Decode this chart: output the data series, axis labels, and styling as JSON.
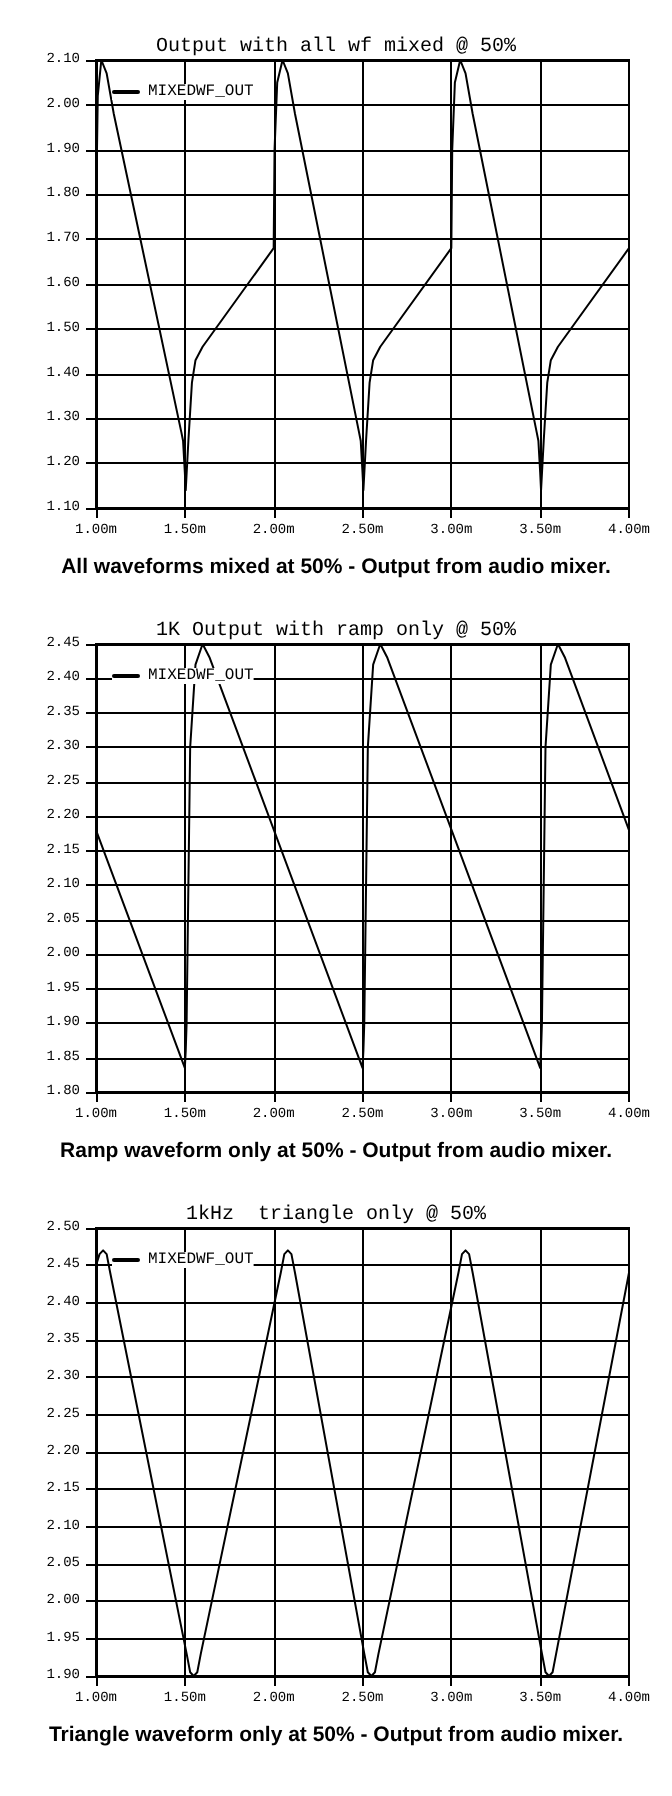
{
  "chart_data": [
    {
      "type": "line",
      "title": "Output with all wf mixed @ 50%",
      "annotations": [
        "All waveforms mixed at 50% - Output from audio mixer."
      ],
      "x": [
        1.0,
        1.01,
        1.03,
        1.06,
        1.1,
        1.48,
        1.49,
        1.5,
        1.505,
        1.52,
        1.54,
        1.56,
        1.6,
        2.0,
        2.005,
        2.02,
        2.05,
        2.08,
        2.12,
        2.48,
        2.49,
        2.5,
        2.505,
        2.52,
        2.54,
        2.56,
        2.6,
        3.0,
        3.005,
        3.02,
        3.05,
        3.08,
        3.12,
        3.48,
        3.49,
        3.5,
        3.505,
        3.52,
        3.54,
        3.56,
        3.6,
        4.0
      ],
      "series": [
        {
          "name": "MIXEDWF_OUT",
          "color": "#000000",
          "values": [
            1.75,
            2.02,
            2.1,
            2.07,
            1.98,
            1.27,
            1.25,
            1.18,
            1.14,
            1.25,
            1.38,
            1.43,
            1.46,
            1.68,
            1.9,
            2.05,
            2.1,
            2.07,
            1.98,
            1.27,
            1.25,
            1.18,
            1.14,
            1.25,
            1.38,
            1.43,
            1.46,
            1.68,
            1.9,
            2.05,
            2.1,
            2.07,
            1.98,
            1.27,
            1.25,
            1.18,
            1.14,
            1.25,
            1.38,
            1.43,
            1.46,
            1.68
          ]
        }
      ],
      "xlim": [
        1,
        4
      ],
      "xticks": [
        {
          "value": 1,
          "label": "1.00m"
        },
        {
          "value": 1.5,
          "label": "1.50m"
        },
        {
          "value": 2,
          "label": "2.00m"
        },
        {
          "value": 2.5,
          "label": "2.50m"
        },
        {
          "value": 3,
          "label": "3.00m"
        },
        {
          "value": 3.5,
          "label": "3.50m"
        },
        {
          "value": 4,
          "label": "4.00m"
        }
      ],
      "ylim": [
        1.1,
        2.1
      ],
      "yticks": [
        {
          "value": 1.1,
          "label": "1.10"
        },
        {
          "value": 1.2,
          "label": "1.20"
        },
        {
          "value": 1.3,
          "label": "1.30"
        },
        {
          "value": 1.4,
          "label": "1.40"
        },
        {
          "value": 1.5,
          "label": "1.50"
        },
        {
          "value": 1.6,
          "label": "1.60"
        },
        {
          "value": 1.7,
          "label": "1.70"
        },
        {
          "value": 1.8,
          "label": "1.80"
        },
        {
          "value": 1.9,
          "label": "1.90"
        },
        {
          "value": 2.0,
          "label": "2.00"
        },
        {
          "value": 2.1,
          "label": "2.10"
        }
      ],
      "grid": true,
      "legend": "top left"
    },
    {
      "type": "line",
      "title": "1K Output with ramp only @ 50%",
      "annotations": [
        "Ramp waveform only at 50% - Output from audio mixer."
      ],
      "x": [
        1.0,
        1.5,
        1.505,
        1.51,
        1.53,
        1.56,
        1.6,
        1.64,
        2.5,
        2.505,
        2.51,
        2.53,
        2.56,
        2.6,
        2.64,
        3.5,
        3.505,
        3.51,
        3.53,
        3.56,
        3.6,
        3.64,
        4.0
      ],
      "series": [
        {
          "name": "MIXEDWF_OUT",
          "color": "#000000",
          "values": [
            2.18,
            1.835,
            1.86,
            1.9,
            2.3,
            2.42,
            2.45,
            2.43,
            1.835,
            1.86,
            1.9,
            2.3,
            2.42,
            2.45,
            2.43,
            1.835,
            1.86,
            1.9,
            2.3,
            2.42,
            2.45,
            2.43,
            2.18
          ]
        }
      ],
      "xlim": [
        1,
        4
      ],
      "xticks": [
        {
          "value": 1,
          "label": "1.00m"
        },
        {
          "value": 1.5,
          "label": "1.50m"
        },
        {
          "value": 2,
          "label": "2.00m"
        },
        {
          "value": 2.5,
          "label": "2.50m"
        },
        {
          "value": 3,
          "label": "3.00m"
        },
        {
          "value": 3.5,
          "label": "3.50m"
        },
        {
          "value": 4,
          "label": "4.00m"
        }
      ],
      "ylim": [
        1.8,
        2.45
      ],
      "yticks": [
        {
          "value": 1.8,
          "label": "1.80"
        },
        1.85,
        {
          "value": 1.9,
          "label": "1.90"
        },
        1.95,
        {
          "value": 2.0,
          "label": "2.00"
        },
        2.05,
        {
          "value": 2.1,
          "label": "2.10"
        },
        2.15,
        {
          "value": 2.2,
          "label": "2.20"
        },
        2.25,
        {
          "value": 2.3,
          "label": "2.30"
        },
        2.35,
        {
          "value": 2.4,
          "label": "2.40"
        },
        2.45
      ],
      "grid": true,
      "legend": "top left"
    },
    {
      "type": "line",
      "title": "1kHz  triangle only @ 50%",
      "annotations": [
        "Triangle waveform only at 50% - Output from audio mixer."
      ],
      "x": [
        1.0,
        1.02,
        1.04,
        1.06,
        1.08,
        1.51,
        1.53,
        1.55,
        1.57,
        1.59,
        2.04,
        2.06,
        2.08,
        2.1,
        2.12,
        2.51,
        2.53,
        2.55,
        2.57,
        2.59,
        3.04,
        3.06,
        3.08,
        3.1,
        3.12,
        3.51,
        3.53,
        3.55,
        3.57,
        3.59,
        4.0
      ],
      "series": [
        {
          "name": "MIXEDWF_OUT",
          "color": "#000000",
          "values": [
            2.45,
            2.465,
            2.47,
            2.465,
            2.44,
            1.93,
            1.905,
            1.9,
            1.905,
            1.93,
            2.44,
            2.465,
            2.47,
            2.465,
            2.44,
            1.93,
            1.905,
            1.9,
            1.905,
            1.93,
            2.44,
            2.465,
            2.47,
            2.465,
            2.44,
            1.93,
            1.905,
            1.9,
            1.905,
            1.93,
            2.44
          ]
        }
      ],
      "xlim": [
        1,
        4
      ],
      "xticks": [
        {
          "value": 1,
          "label": "1.00m"
        },
        {
          "value": 1.5,
          "label": "1.50m"
        },
        {
          "value": 2,
          "label": "2.00m"
        },
        {
          "value": 2.5,
          "label": "2.50m"
        },
        {
          "value": 3,
          "label": "3.00m"
        },
        {
          "value": 3.5,
          "label": "3.50m"
        },
        {
          "value": 4,
          "label": "4.00m"
        }
      ],
      "ylim": [
        1.9,
        2.5
      ],
      "yticks": [
        {
          "value": 1.9,
          "label": "1.90"
        },
        1.95,
        {
          "value": 2.0,
          "label": "2.00"
        },
        2.05,
        {
          "value": 2.1,
          "label": "2.10"
        },
        2.15,
        {
          "value": 2.2,
          "label": "2.20"
        },
        2.25,
        {
          "value": 2.3,
          "label": "2.30"
        },
        2.35,
        {
          "value": 2.4,
          "label": "2.40"
        },
        2.45,
        {
          "value": 2.5,
          "label": "2.50"
        }
      ],
      "grid": true,
      "legend": "top left"
    }
  ]
}
